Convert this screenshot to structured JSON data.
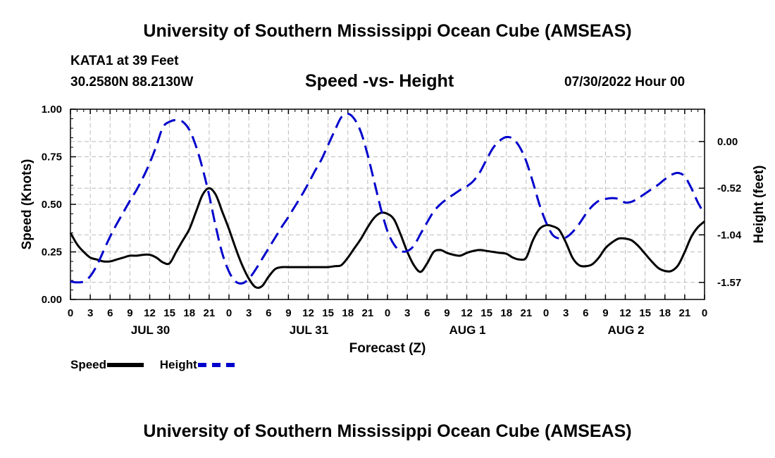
{
  "header": {
    "title": "University of Southern Mississippi Ocean Cube (AMSEAS)",
    "station": "KATA1 at 39 Feet",
    "coords": "30.2580N  88.2130W",
    "subtitle": "Speed -vs- Height",
    "run_time": "07/30/2022 Hour 00"
  },
  "footer": {
    "title": "University of Southern Mississippi Ocean Cube (AMSEAS)"
  },
  "legend": {
    "speed_label": "Speed",
    "height_label": "Height"
  },
  "colors": {
    "speed": "#000000",
    "height": "#0000cc",
    "grid": "#bbbbbb"
  },
  "chart_data": {
    "type": "line",
    "title": "Speed -vs- Height",
    "xlabel": "Forecast (Z)",
    "ylabel": "Speed (Knots)",
    "ylabel_right": "Height (feet)",
    "grid": true,
    "x_range_hours": [
      0,
      96
    ],
    "x_tick_step_hours": 3,
    "x_tick_labels": [
      "0",
      "3",
      "6",
      "9",
      "12",
      "15",
      "18",
      "21",
      "0",
      "3",
      "6",
      "9",
      "12",
      "15",
      "18",
      "21",
      "0",
      "3",
      "6",
      "9",
      "12",
      "15",
      "18",
      "21",
      "0",
      "3",
      "6",
      "9",
      "12",
      "15",
      "18",
      "21",
      "0"
    ],
    "day_labels": [
      {
        "label": "JUL 30",
        "hour": 12
      },
      {
        "label": "JUL 31",
        "hour": 36
      },
      {
        "label": "AUG 1",
        "hour": 60
      },
      {
        "label": "AUG 2",
        "hour": 84
      }
    ],
    "y_left": {
      "range": [
        0,
        1
      ],
      "ticks": [
        0,
        0.25,
        0.5,
        0.75,
        1.0
      ],
      "tick_labels": [
        "0.00",
        "0.25",
        "0.50",
        "0.75",
        "1.00"
      ]
    },
    "y_right": {
      "range": [
        -1.76,
        0.36
      ],
      "ticks": [
        0.0,
        -0.52,
        -1.04,
        -1.57
      ],
      "tick_labels": [
        "0.00",
        "-0.52",
        "-1.04",
        "-1.57"
      ]
    },
    "series": [
      {
        "name": "Speed",
        "axis": "left",
        "style": "solid",
        "x": [
          0,
          1,
          2,
          3,
          4,
          5,
          6,
          7,
          8,
          9,
          10,
          11,
          12,
          13,
          14,
          15,
          16,
          17,
          18,
          19,
          20,
          21,
          22,
          23,
          24,
          25,
          26,
          27,
          28,
          29,
          30,
          31,
          32,
          33,
          34,
          35,
          36,
          37,
          38,
          39,
          40,
          41,
          42,
          43,
          44,
          45,
          46,
          47,
          48,
          49,
          50,
          51,
          52,
          53,
          54,
          55,
          56,
          57,
          58,
          59,
          60,
          61,
          62,
          63,
          64,
          65,
          66,
          67,
          68,
          69,
          70,
          71,
          72,
          73,
          74,
          75,
          76,
          77,
          78,
          79,
          80,
          81,
          82,
          83,
          84,
          85,
          86,
          87,
          88,
          89,
          90,
          91,
          92,
          93,
          94,
          95,
          96
        ],
        "values": [
          0.35,
          0.29,
          0.25,
          0.22,
          0.21,
          0.2,
          0.2,
          0.21,
          0.22,
          0.23,
          0.23,
          0.235,
          0.235,
          0.22,
          0.195,
          0.19,
          0.25,
          0.31,
          0.37,
          0.46,
          0.55,
          0.585,
          0.55,
          0.46,
          0.37,
          0.27,
          0.18,
          0.11,
          0.065,
          0.07,
          0.12,
          0.16,
          0.17,
          0.17,
          0.17,
          0.17,
          0.17,
          0.17,
          0.17,
          0.17,
          0.175,
          0.18,
          0.22,
          0.27,
          0.32,
          0.38,
          0.43,
          0.455,
          0.45,
          0.42,
          0.34,
          0.25,
          0.18,
          0.145,
          0.19,
          0.25,
          0.26,
          0.245,
          0.235,
          0.23,
          0.245,
          0.255,
          0.26,
          0.255,
          0.25,
          0.245,
          0.24,
          0.22,
          0.21,
          0.22,
          0.31,
          0.37,
          0.39,
          0.385,
          0.365,
          0.3,
          0.22,
          0.18,
          0.175,
          0.185,
          0.22,
          0.27,
          0.3,
          0.32,
          0.32,
          0.31,
          0.28,
          0.24,
          0.2,
          0.165,
          0.15,
          0.15,
          0.18,
          0.25,
          0.33,
          0.38,
          0.41
        ]
      },
      {
        "name": "Height",
        "axis": "right",
        "style": "dashed",
        "x": [
          0,
          1,
          2,
          3,
          4,
          5,
          6,
          7,
          8,
          9,
          10,
          11,
          12,
          13,
          14,
          15,
          16,
          17,
          18,
          19,
          20,
          21,
          22,
          23,
          24,
          25,
          26,
          27,
          28,
          29,
          30,
          31,
          32,
          33,
          34,
          35,
          36,
          37,
          38,
          39,
          40,
          41,
          42,
          43,
          44,
          45,
          46,
          47,
          48,
          49,
          50,
          51,
          52,
          53,
          54,
          55,
          56,
          57,
          58,
          59,
          60,
          61,
          62,
          63,
          64,
          65,
          66,
          67,
          68,
          69,
          70,
          71,
          72,
          73,
          74,
          75,
          76,
          77,
          78,
          79,
          80,
          81,
          82,
          83,
          84,
          85,
          86,
          87,
          88,
          89,
          90,
          91,
          92,
          93,
          94,
          95,
          96
        ],
        "values": [
          -1.56,
          -1.57,
          -1.56,
          -1.5,
          -1.38,
          -1.22,
          -1.06,
          -0.92,
          -0.79,
          -0.66,
          -0.54,
          -0.4,
          -0.24,
          -0.05,
          0.16,
          0.22,
          0.24,
          0.22,
          0.13,
          -0.05,
          -0.3,
          -0.6,
          -0.95,
          -1.25,
          -1.45,
          -1.56,
          -1.58,
          -1.53,
          -1.43,
          -1.31,
          -1.19,
          -1.07,
          -0.95,
          -0.84,
          -0.72,
          -0.6,
          -0.47,
          -0.33,
          -0.2,
          -0.04,
          0.12,
          0.27,
          0.31,
          0.25,
          0.1,
          -0.15,
          -0.45,
          -0.75,
          -1.0,
          -1.15,
          -1.22,
          -1.22,
          -1.16,
          -1.03,
          -0.9,
          -0.78,
          -0.7,
          -0.64,
          -0.59,
          -0.54,
          -0.5,
          -0.44,
          -0.34,
          -0.2,
          -0.07,
          0.01,
          0.05,
          0.03,
          -0.06,
          -0.22,
          -0.45,
          -0.7,
          -0.9,
          -1.04,
          -1.08,
          -1.07,
          -1.01,
          -0.92,
          -0.81,
          -0.72,
          -0.66,
          -0.64,
          -0.63,
          -0.64,
          -0.68,
          -0.67,
          -0.63,
          -0.58,
          -0.53,
          -0.48,
          -0.42,
          -0.37,
          -0.35,
          -0.39,
          -0.52,
          -0.68,
          -0.81
        ]
      }
    ]
  }
}
